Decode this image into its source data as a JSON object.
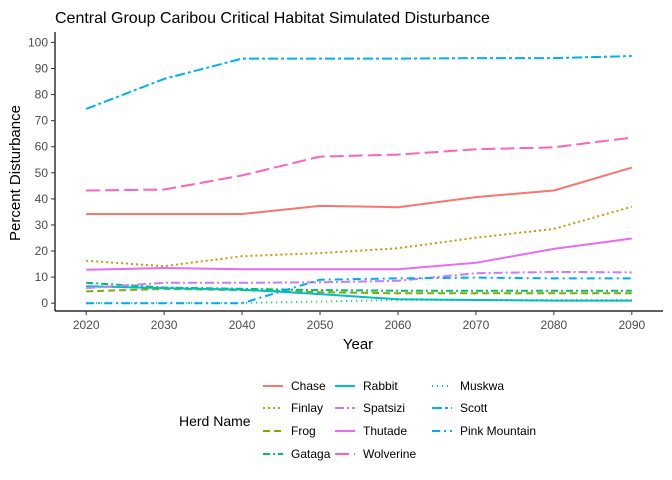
{
  "chart_data": {
    "type": "line",
    "title": "Central Group Caribou Critical Habitat Simulated Disturbance",
    "xlabel": "Year",
    "ylabel": "Percent Disturbance",
    "xlim": [
      2016,
      2094
    ],
    "ylim": [
      -3,
      104
    ],
    "x_ticks": [
      2020,
      2030,
      2040,
      2050,
      2060,
      2070,
      2080,
      2090
    ],
    "y_ticks": [
      0,
      10,
      20,
      30,
      40,
      50,
      60,
      70,
      80,
      90,
      100
    ],
    "grid": false,
    "legend": {
      "title": "Herd Name",
      "position": "bottom"
    },
    "series": [
      {
        "name": "Chase",
        "color": "#F8766D",
        "dash": "",
        "x": [
          2020,
          2030,
          2040,
          2050,
          2060,
          2070,
          2080,
          2090
        ],
        "values": [
          34.2,
          34.2,
          34.2,
          37.3,
          36.8,
          40.7,
          43.2,
          52
        ]
      },
      {
        "name": "Finlay",
        "color": "#CD9600",
        "dash": "2,3",
        "x": [
          2020,
          2030,
          2040,
          2050,
          2060,
          2070,
          2080,
          2090
        ],
        "values": [
          16.3,
          14.2,
          18.0,
          19.2,
          21.1,
          25.1,
          28.5,
          37.0
        ]
      },
      {
        "name": "Frog",
        "color": "#7CAE00",
        "dash": "7,4",
        "x": [
          2020,
          2030,
          2040,
          2050,
          2060,
          2070,
          2080,
          2090
        ],
        "values": [
          4.5,
          5.5,
          5.0,
          4.2,
          3.8,
          3.8,
          3.8,
          3.8
        ]
      },
      {
        "name": "Gataga",
        "color": "#00BE67",
        "dash": "7,3,2,3",
        "x": [
          2020,
          2030,
          2040,
          2050,
          2060,
          2070,
          2080,
          2090
        ],
        "values": [
          7.8,
          6.0,
          5.5,
          5.0,
          4.8,
          4.8,
          4.8,
          4.8
        ]
      },
      {
        "name": "Rabbit",
        "color": "#00BFC4",
        "dash": "",
        "x": [
          2020,
          2030,
          2040,
          2050,
          2060,
          2070,
          2080,
          2090
        ],
        "values": [
          6.5,
          5.8,
          5.2,
          3.5,
          1.5,
          1.2,
          1.0,
          1.0
        ]
      },
      {
        "name": "Spatsizi",
        "color": "#C77CFF",
        "dash": "9,3,2,3",
        "x": [
          2020,
          2030,
          2040,
          2050,
          2060,
          2070,
          2080,
          2090
        ],
        "values": [
          5.8,
          7.8,
          7.8,
          8.0,
          8.6,
          11.5,
          12.0,
          11.8
        ]
      },
      {
        "name": "Thutade",
        "color": "#E76BF3",
        "dash": "",
        "x": [
          2020,
          2030,
          2040,
          2050,
          2060,
          2070,
          2080,
          2090
        ],
        "values": [
          12.8,
          13.5,
          13.0,
          13.0,
          13.0,
          15.5,
          20.8,
          24.8
        ]
      },
      {
        "name": "Wolverine",
        "color": "#FF62BC",
        "dash": "14,5",
        "x": [
          2020,
          2030,
          2040,
          2050,
          2060,
          2070,
          2080,
          2090
        ],
        "values": [
          43.2,
          43.6,
          49.0,
          56.2,
          57.0,
          59.0,
          59.8,
          63.5
        ]
      },
      {
        "name": "Muskwa",
        "color": "#00BF7D",
        "dash": "1,4",
        "x": [
          2020,
          2030,
          2040,
          2050,
          2060,
          2070,
          2080,
          2090
        ],
        "values": [
          0.1,
          0.1,
          0.1,
          0.6,
          1.2,
          1.2,
          1.2,
          1.2
        ]
      },
      {
        "name": "Scott",
        "color": "#00B0F6",
        "dash": "10,3,3,3",
        "x": [
          2020,
          2030,
          2040,
          2050,
          2060,
          2070,
          2080,
          2090
        ],
        "values": [
          74.5,
          86.0,
          93.8,
          93.8,
          93.8,
          94.0,
          94.0,
          94.8
        ]
      },
      {
        "name": "Pink Mountain",
        "color": "#00A9FF",
        "dash": "8,4,2,4",
        "x": [
          2020,
          2030,
          2040,
          2050,
          2060,
          2070,
          2080,
          2090
        ],
        "values": [
          0.0,
          0.0,
          0.0,
          9.0,
          9.5,
          9.8,
          9.5,
          9.5
        ]
      }
    ]
  }
}
